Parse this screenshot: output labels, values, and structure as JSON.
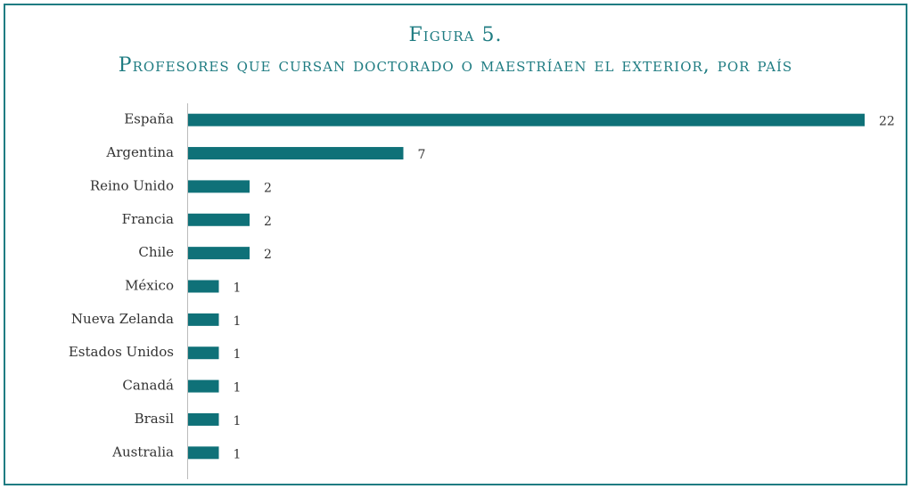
{
  "chart_data": {
    "type": "bar",
    "orientation": "horizontal",
    "title": "Figura 5.",
    "subtitle": "Profesores que cursan doctorado o maestríaen el exterior, por país",
    "categories": [
      "España",
      "Argentina",
      "Reino Unido",
      "Francia",
      "Chile",
      "México",
      "Nueva Zelanda",
      "Estados Unidos",
      "Canadá",
      "Brasil",
      "Australia"
    ],
    "values": [
      22,
      7,
      2,
      2,
      2,
      1,
      1,
      1,
      1,
      1,
      1
    ],
    "color": "#0f7178"
  }
}
